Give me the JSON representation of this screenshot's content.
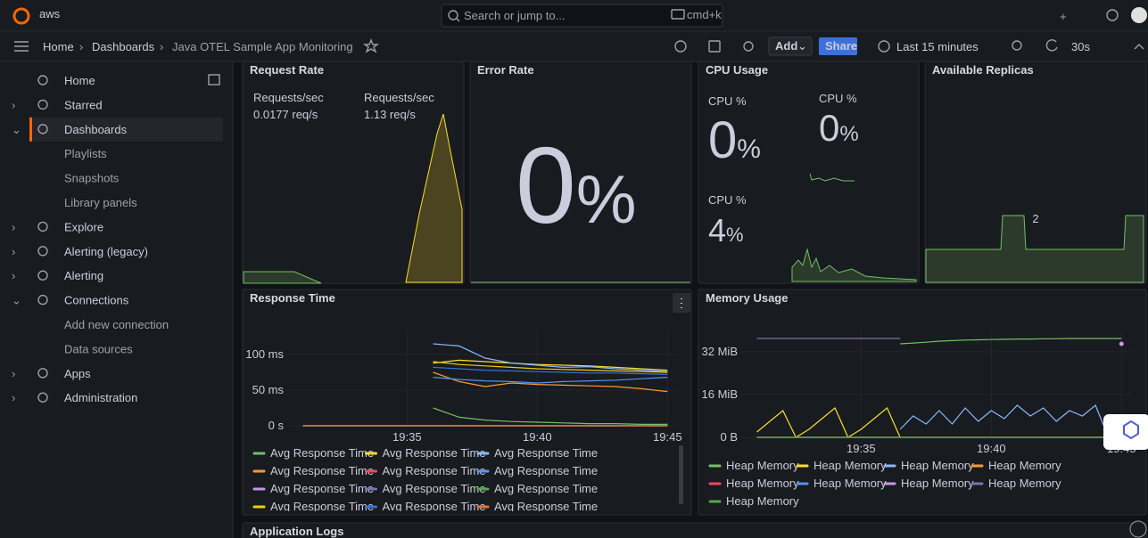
{
  "topbar": {
    "brand": "aws",
    "search": "Search or jump to...",
    "shortcut": "cmd+k"
  },
  "toolbar": {
    "breadcrumb": [
      "Home",
      "Dashboards",
      "Java OTEL Sample App Monitoring"
    ],
    "add": "Add",
    "share": "Share",
    "time_range": "Last 15 minutes",
    "refresh": "30s"
  },
  "nav": [
    {
      "label": "Home"
    },
    {
      "label": "Starred"
    },
    {
      "label": "Dashboards",
      "children": [
        "Playlists",
        "Snapshots",
        "Library panels"
      ]
    },
    {
      "label": "Explore"
    },
    {
      "label": "Alerting (legacy)"
    },
    {
      "label": "Alerting"
    },
    {
      "label": "Connections",
      "children": [
        "Add new connection",
        "Data sources"
      ]
    },
    {
      "label": "Apps"
    },
    {
      "label": "Administration"
    }
  ],
  "panels": {
    "request_rate": {
      "title": "Request Rate",
      "stats": [
        {
          "label": "Requests/sec",
          "value": "0.0177 req/s"
        },
        {
          "label": "Requests/sec",
          "value": "1.13 req/s"
        }
      ]
    },
    "error_rate": {
      "title": "Error Rate",
      "value": "0",
      "unit": "%"
    },
    "cpu": {
      "title": "CPU Usage",
      "stats": [
        {
          "label": "CPU %",
          "value": "0",
          "unit": "%"
        },
        {
          "label": "CPU %",
          "value": "0",
          "unit": "%"
        },
        {
          "label": "CPU %",
          "value": "4",
          "unit": "%"
        }
      ]
    },
    "replicas": {
      "title": "Available Replicas",
      "value": "2"
    },
    "logs": {
      "title": "Application Logs"
    }
  },
  "chart_data": [
    {
      "type": "line",
      "title": "Response Time",
      "x": [
        31,
        32,
        33,
        34,
        35,
        36,
        37,
        38,
        39,
        40,
        41,
        42,
        43,
        44,
        45
      ],
      "xlim": [
        30.4,
        45.4
      ],
      "xticks": [
        {
          "value": 35,
          "label": "19:35"
        },
        {
          "value": 40,
          "label": "19:40"
        },
        {
          "value": 45,
          "label": "19:45"
        }
      ],
      "ylim": [
        0,
        135
      ],
      "yticks": [
        {
          "value": 0,
          "label": "0 s"
        },
        {
          "value": 50,
          "label": "50 ms"
        },
        {
          "value": 100,
          "label": "100 ms"
        }
      ],
      "grid": true,
      "series": [
        {
          "name": "Avg Response Time",
          "color": "#73bf69",
          "values": [
            null,
            null,
            null,
            null,
            null,
            25,
            12,
            8,
            6,
            5,
            4,
            3,
            3,
            2,
            2
          ]
        },
        {
          "name": "Avg Response Time",
          "color": "#fade2a",
          "values": [
            null,
            null,
            null,
            null,
            null,
            88,
            92,
            90,
            88,
            86,
            85,
            84,
            82,
            80,
            78
          ]
        },
        {
          "name": "Avg Response Time",
          "color": "#8ab8ff",
          "values": [
            null,
            null,
            null,
            null,
            null,
            115,
            112,
            95,
            88,
            85,
            82,
            83,
            80,
            78,
            76
          ]
        },
        {
          "name": "Avg Response Time",
          "color": "#ff9830",
          "values": [
            null,
            null,
            null,
            null,
            null,
            75,
            62,
            55,
            60,
            58,
            57,
            56,
            55,
            52,
            48
          ]
        },
        {
          "name": "Avg Response Time",
          "color": "#f2495c",
          "values": [
            0,
            0,
            0,
            0,
            0,
            0,
            0,
            0,
            0,
            0,
            0,
            0,
            0,
            0,
            0
          ]
        },
        {
          "name": "Avg Response Time",
          "color": "#5794f2",
          "values": [
            null,
            null,
            null,
            null,
            null,
            68,
            65,
            63,
            62,
            60,
            62,
            63,
            64,
            66,
            68
          ]
        },
        {
          "name": "Avg Response Time",
          "color": "#ca95e5",
          "values": [
            0,
            0,
            0,
            0,
            0,
            0,
            0,
            0,
            0,
            0,
            0,
            0,
            0,
            0,
            0
          ]
        },
        {
          "name": "Avg Response Time",
          "color": "#806eb7",
          "values": [
            0,
            0,
            0,
            0,
            0,
            0,
            0,
            0,
            0,
            0,
            0,
            0,
            0,
            0,
            0
          ]
        },
        {
          "name": "Avg Response Time",
          "color": "#56a64b",
          "values": [
            0,
            0,
            0,
            0,
            0,
            0,
            0,
            0,
            0,
            0,
            0,
            0,
            0,
            0,
            0
          ]
        },
        {
          "name": "Avg Response Time",
          "color": "#f2cc0c",
          "values": [
            null,
            null,
            null,
            null,
            null,
            90,
            86,
            84,
            82,
            80,
            79,
            78,
            77,
            76,
            75
          ]
        },
        {
          "name": "Avg Response Time",
          "color": "#3274d9",
          "values": [
            null,
            null,
            null,
            null,
            null,
            82,
            80,
            78,
            77,
            76,
            75,
            74,
            74,
            73,
            72
          ]
        },
        {
          "name": "Avg Response Time",
          "color": "#e0752d",
          "values": [
            0,
            0,
            0,
            0,
            0,
            0,
            0,
            0,
            0,
            0,
            0,
            0,
            0,
            0,
            0
          ]
        }
      ]
    },
    {
      "type": "line",
      "title": "Memory Usage",
      "x": [
        31,
        31.5,
        32,
        32.5,
        33,
        33.5,
        34,
        34.5,
        35,
        35.5,
        36,
        36.5,
        37,
        37.5,
        38,
        38.5,
        39,
        39.5,
        40,
        40.5,
        41,
        41.5,
        42,
        42.5,
        43,
        43.5,
        44,
        44.5,
        45
      ],
      "xlim": [
        30.4,
        45.4
      ],
      "xticks": [
        {
          "value": 35,
          "label": "19:35"
        },
        {
          "value": 40,
          "label": "19:40"
        },
        {
          "value": 45,
          "label": "19:45"
        }
      ],
      "ylim": [
        0,
        40
      ],
      "yticks": [
        {
          "value": 0,
          "label": "0 B"
        },
        {
          "value": 16,
          "label": "16 MiB"
        },
        {
          "value": 32,
          "label": "32 MiB"
        }
      ],
      "grid": true,
      "series": [
        {
          "name": "Heap Memory",
          "color": "#73bf69",
          "values": [
            null,
            null,
            null,
            null,
            null,
            null,
            null,
            null,
            null,
            null,
            null,
            35,
            35.3,
            35.6,
            36,
            36.2,
            36.4,
            36.5,
            36.6,
            36.7,
            36.8,
            36.8,
            36.9,
            36.9,
            37,
            37,
            37,
            37,
            37
          ]
        },
        {
          "name": "Heap Memory",
          "color": "#fade2a",
          "values": [
            2,
            6,
            10,
            0,
            3,
            7,
            11,
            0,
            3,
            7,
            11,
            0,
            null,
            null,
            null,
            null,
            null,
            null,
            null,
            null,
            null,
            null,
            null,
            null,
            null,
            null,
            null,
            null,
            null
          ]
        },
        {
          "name": "Heap Memory",
          "color": "#8ab8ff",
          "values": [
            null,
            null,
            null,
            null,
            null,
            null,
            null,
            null,
            null,
            null,
            null,
            3,
            8,
            5,
            10,
            5,
            11,
            6,
            10,
            7,
            12,
            8,
            11,
            6,
            10,
            8,
            12,
            0,
            0
          ]
        },
        {
          "name": "Heap Memory",
          "color": "#ff9830",
          "values": [
            0,
            0,
            0,
            0,
            0,
            0,
            0,
            0,
            0,
            0,
            0,
            0,
            0,
            0,
            0,
            0,
            0,
            0,
            0,
            0,
            0,
            0,
            0,
            0,
            0,
            0,
            0,
            0,
            0
          ]
        },
        {
          "name": "Heap Memory",
          "color": "#f2495c",
          "values": [
            0,
            0,
            0,
            0,
            0,
            0,
            0,
            0,
            0,
            0,
            0,
            0,
            0,
            0,
            0,
            0,
            0,
            0,
            0,
            0,
            0,
            0,
            0,
            0,
            0,
            0,
            0,
            0,
            0
          ]
        },
        {
          "name": "Heap Memory",
          "color": "#5794f2",
          "values": [
            0,
            0,
            0,
            0,
            0,
            0,
            0,
            0,
            0,
            0,
            0,
            0,
            0,
            0,
            0,
            0,
            0,
            0,
            0,
            0,
            0,
            0,
            0,
            0,
            0,
            0,
            0,
            0,
            0
          ]
        },
        {
          "name": "Heap Memory",
          "color": "#ca95e5",
          "values": [
            null,
            null,
            null,
            null,
            null,
            null,
            null,
            null,
            null,
            null,
            null,
            null,
            null,
            null,
            null,
            null,
            null,
            null,
            null,
            null,
            null,
            null,
            null,
            null,
            null,
            null,
            null,
            null,
            35
          ]
        },
        {
          "name": "Heap Memory",
          "color": "#806eb7",
          "values": [
            37,
            37,
            37,
            37,
            37,
            37,
            37,
            37,
            37,
            37,
            37,
            37,
            null,
            null,
            null,
            null,
            null,
            null,
            null,
            null,
            null,
            null,
            null,
            null,
            null,
            null,
            null,
            null,
            null
          ]
        },
        {
          "name": "Heap Memory",
          "color": "#56a64b",
          "values": [
            0,
            0,
            0,
            0,
            0,
            0,
            0,
            0,
            0,
            0,
            0,
            0,
            0,
            0,
            0,
            0,
            0,
            0,
            0,
            0,
            0,
            0,
            0,
            0,
            0,
            0,
            0,
            0,
            0
          ]
        }
      ]
    }
  ]
}
